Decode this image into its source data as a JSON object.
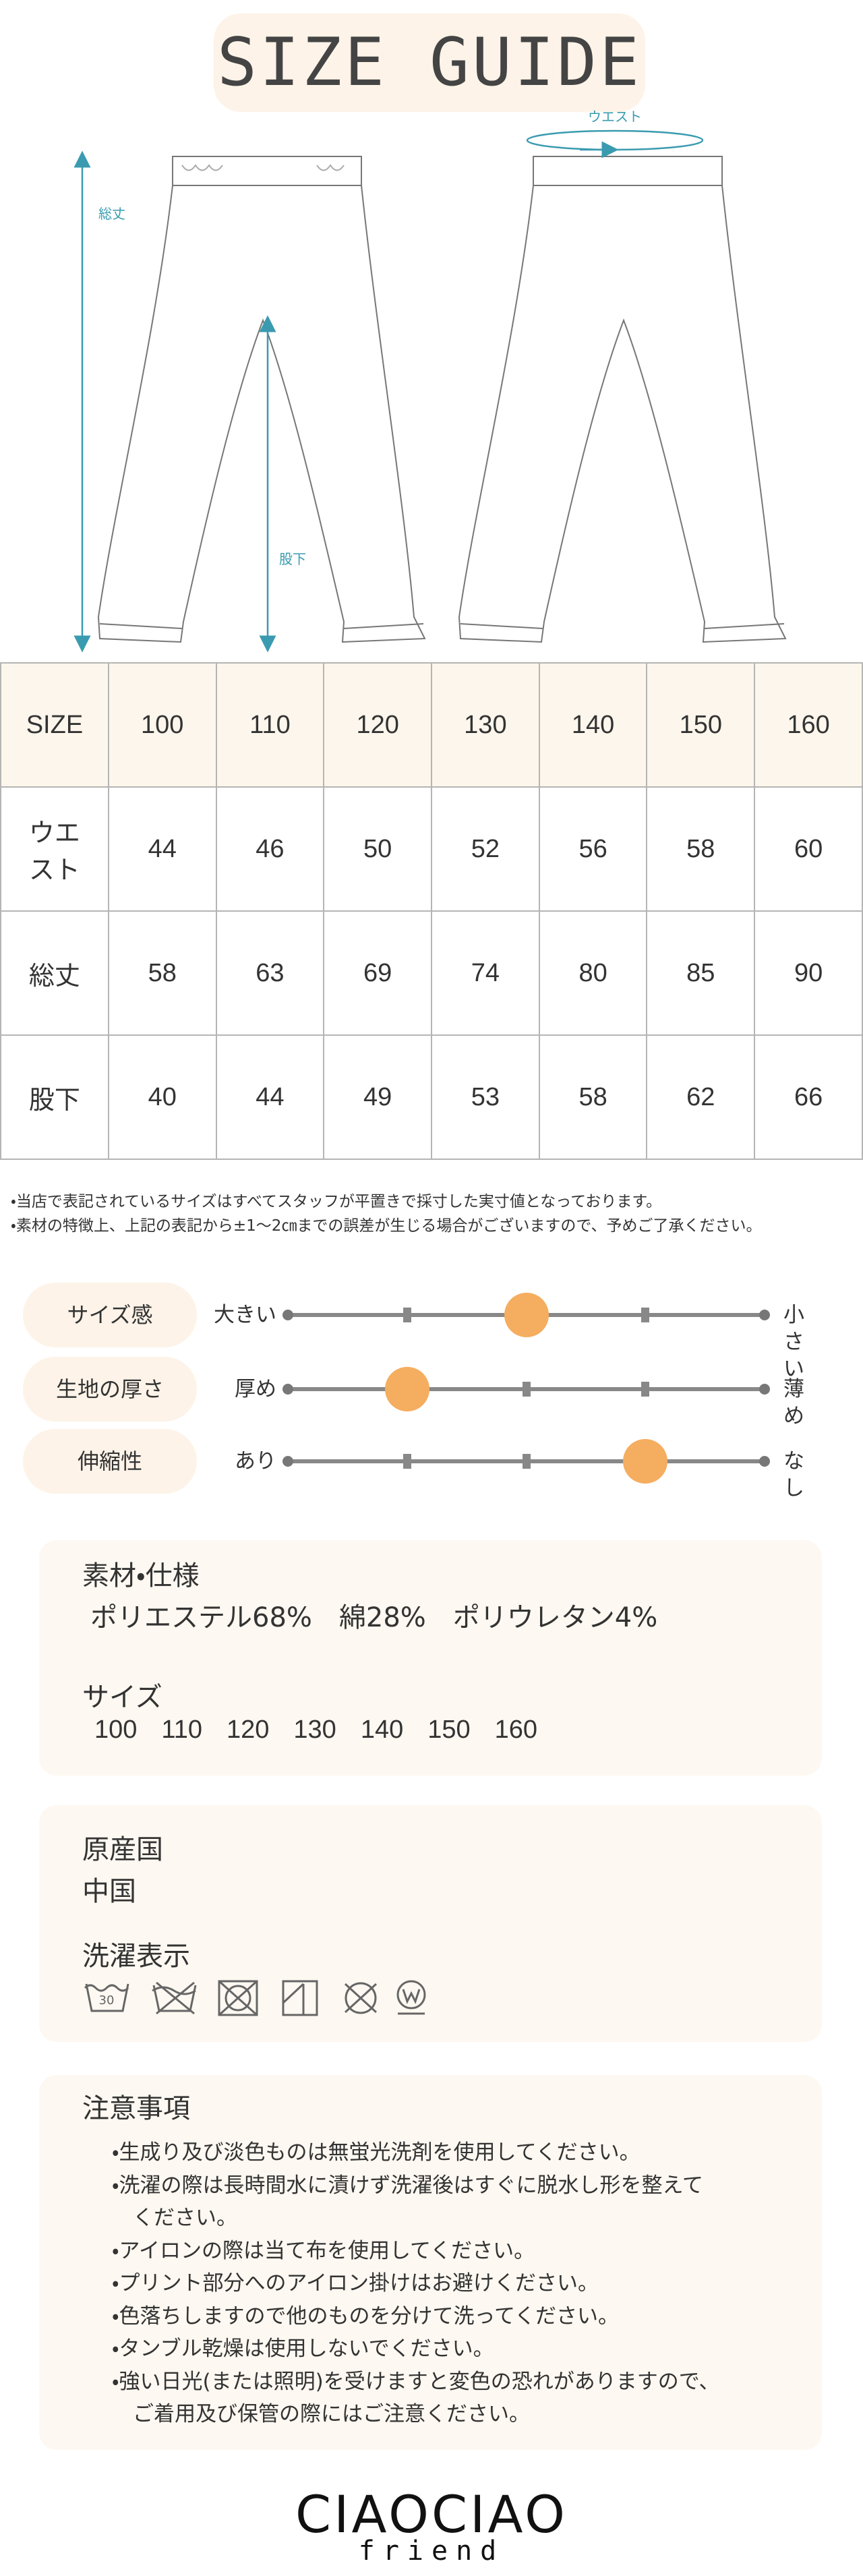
{
  "header": {
    "title": "SIZE GUIDE"
  },
  "diagram": {
    "length_label": "総丈",
    "inseam_label": "股下",
    "waist_label": "ウエスト"
  },
  "table": {
    "header": [
      "SIZE",
      "100",
      "110",
      "120",
      "130",
      "140",
      "150",
      "160"
    ],
    "rows": [
      [
        "ウエスト",
        "44",
        "46",
        "50",
        "52",
        "56",
        "58",
        "60"
      ],
      [
        "総丈",
        "58",
        "63",
        "69",
        "74",
        "80",
        "85",
        "90"
      ],
      [
        "股下",
        "40",
        "44",
        "49",
        "53",
        "58",
        "62",
        "66"
      ]
    ]
  },
  "notes": [
    "・当店で表記されているサイズはすべてスタッフが平置きで採寸した実寸値となっております。",
    "・素材の特徴上、上記の表記から±1～2㎝までの誤差が生じる場合がございますので、予めご了承ください。"
  ],
  "fit": [
    {
      "label": "サイズ感",
      "left": "大きい",
      "right": "小さい",
      "level": 2
    },
    {
      "label": "生地の厚さ",
      "left": "厚め",
      "right": "薄め",
      "level": 1
    },
    {
      "label": "伸縮性",
      "left": "あり",
      "right": "なし",
      "level": 3
    }
  ],
  "material": {
    "title": "素材・仕様",
    "text": "ポリエステル68%　綿28%　ポリウレタン4%"
  },
  "sizes": {
    "title": "サイズ",
    "values": [
      "100",
      "110",
      "120",
      "130",
      "140",
      "150",
      "160"
    ]
  },
  "origin": {
    "title": "原産国",
    "value": "中国"
  },
  "care": {
    "title": "洗濯表示",
    "wash_temp": "30"
  },
  "caution": {
    "title": "注意事項",
    "lines": [
      "・生成り及び淡色ものは無蛍光洗剤を使用してください。",
      "・洗濯の際は長時間水に漬けず洗濯後はすぐに脱水し形を整えて",
      "　ください。",
      "・アイロンの際は当て布を使用してください。",
      "・プリント部分へのアイロン掛けはお避けください。",
      "・色落ちしますので他のものを分けて洗ってください。",
      "・タンブル乾燥は使用しないでください。",
      "・強い日光(または照明)を受けますと変色の恐れがありますので、",
      "　ご着用及び保管の際にはご注意ください。"
    ]
  },
  "logo": {
    "brand": "CIAOCIAO",
    "sub": "friend"
  }
}
